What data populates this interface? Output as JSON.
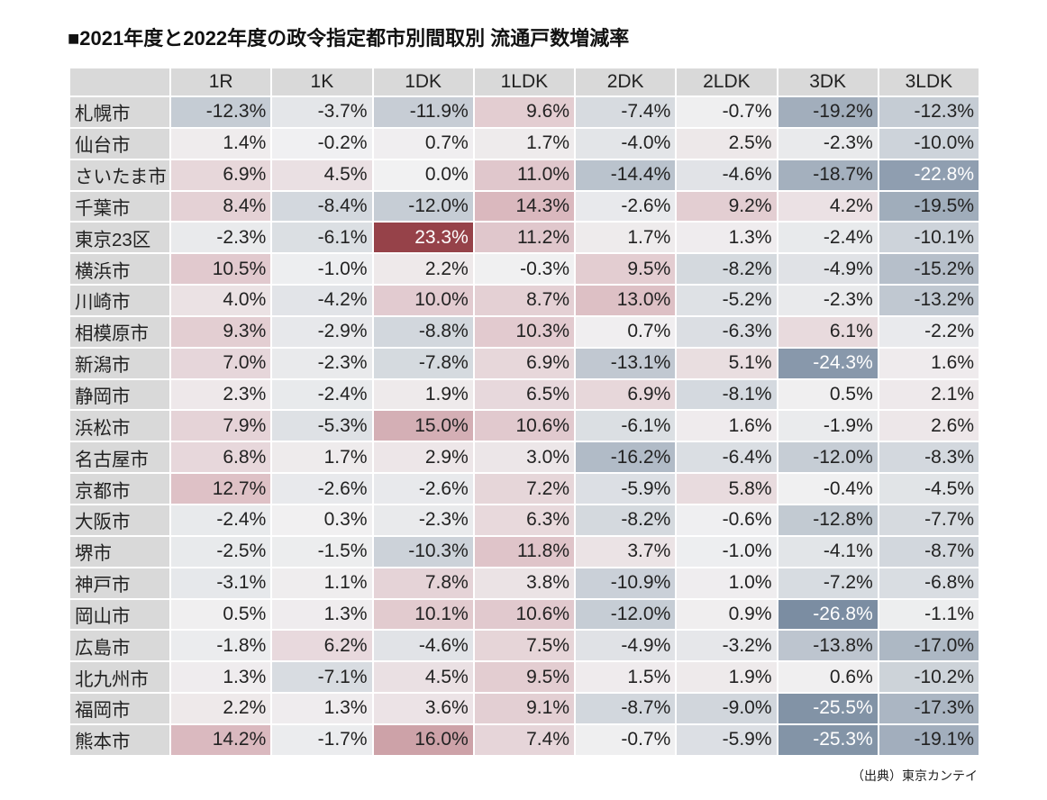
{
  "chart_data": {
    "type": "heatmap",
    "title": "■2021年度と2022年度の政令指定都市別間取別 流通戸数増減率",
    "columns": [
      "1R",
      "1K",
      "1DK",
      "1LDK",
      "2DK",
      "2LDK",
      "3DK",
      "3LDK"
    ],
    "rows": [
      "札幌市",
      "仙台市",
      "さいたま市",
      "千葉市",
      "東京23区",
      "横浜市",
      "川崎市",
      "相模原市",
      "新潟市",
      "静岡市",
      "浜松市",
      "名古屋市",
      "京都市",
      "大阪市",
      "堺市",
      "神戸市",
      "岡山市",
      "広島市",
      "北九州市",
      "福岡市",
      "熊本市"
    ],
    "values": [
      [
        -12.3,
        -3.7,
        -11.9,
        9.6,
        -7.4,
        -0.7,
        -19.2,
        -12.3
      ],
      [
        1.4,
        -0.2,
        0.7,
        1.7,
        -4.0,
        2.5,
        -2.3,
        -10.0
      ],
      [
        6.9,
        4.5,
        0.0,
        11.0,
        -14.4,
        -4.6,
        -18.7,
        -22.8
      ],
      [
        8.4,
        -8.4,
        -12.0,
        14.3,
        -2.6,
        9.2,
        4.2,
        -19.5
      ],
      [
        -2.3,
        -6.1,
        23.3,
        11.2,
        1.7,
        1.3,
        -2.4,
        -10.1
      ],
      [
        10.5,
        -1.0,
        2.2,
        -0.3,
        9.5,
        -8.2,
        -4.9,
        -15.2
      ],
      [
        4.0,
        -4.2,
        10.0,
        8.7,
        13.0,
        -5.2,
        -2.3,
        -13.2
      ],
      [
        9.3,
        -2.9,
        -8.8,
        10.3,
        0.7,
        -6.3,
        6.1,
        -2.2
      ],
      [
        7.0,
        -2.3,
        -7.8,
        6.9,
        -13.1,
        5.1,
        -24.3,
        1.6
      ],
      [
        2.3,
        -2.4,
        1.9,
        6.5,
        6.9,
        -8.1,
        0.5,
        2.1
      ],
      [
        7.9,
        -5.3,
        15.0,
        10.6,
        -6.1,
        1.6,
        -1.9,
        2.6
      ],
      [
        6.8,
        1.7,
        2.9,
        3.0,
        -16.2,
        -6.4,
        -12.0,
        -8.3
      ],
      [
        12.7,
        -2.6,
        -2.6,
        7.2,
        -5.9,
        5.8,
        -0.4,
        -4.5
      ],
      [
        -2.4,
        0.3,
        -2.3,
        6.3,
        -8.2,
        -0.6,
        -12.8,
        -7.7
      ],
      [
        -2.5,
        -1.5,
        -10.3,
        11.8,
        3.7,
        -1.0,
        -4.1,
        -8.7
      ],
      [
        -3.1,
        1.1,
        7.8,
        3.8,
        -10.9,
        1.0,
        -7.2,
        -6.8
      ],
      [
        0.5,
        1.3,
        10.1,
        10.6,
        -12.0,
        0.9,
        -26.8,
        -1.1
      ],
      [
        -1.8,
        6.2,
        -4.6,
        7.5,
        -4.9,
        -3.2,
        -13.8,
        -17.0
      ],
      [
        1.3,
        -7.1,
        4.5,
        9.5,
        1.5,
        1.9,
        0.6,
        -10.2
      ],
      [
        2.2,
        1.3,
        3.6,
        9.1,
        -8.7,
        -9.0,
        -25.5,
        -17.3
      ],
      [
        14.2,
        -1.7,
        16.0,
        7.4,
        -0.7,
        -5.9,
        -25.3,
        -19.1
      ]
    ],
    "unit": "%",
    "source": "（出典）東京カンテイ",
    "colors": {
      "negative_strong": "#7b8da2",
      "negative_light": "#c6cdd5",
      "neutral": "#f1f1f2",
      "positive_light": "#dcbcc2",
      "positive_strong": "#964249",
      "label_background": "#d9d9d9",
      "text": "#222222",
      "text_on_dark": "#ffffff"
    }
  }
}
